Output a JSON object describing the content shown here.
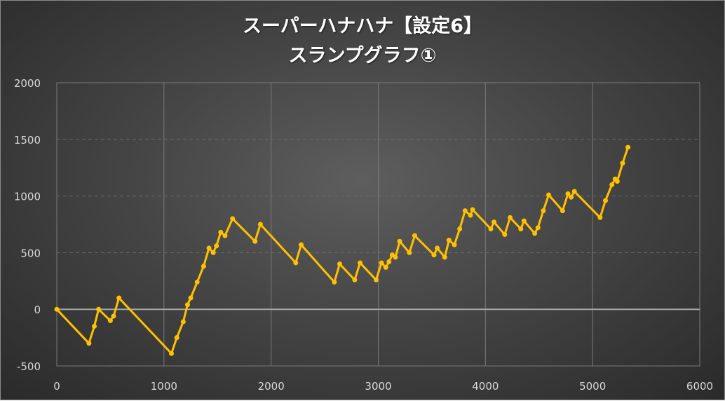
{
  "title_line_1": "スーパーハナハナ【設定6】",
  "title_line_2": "スランプグラフ①",
  "colors": {
    "line": "#FFC000",
    "grid_major": "#7a7a7a",
    "grid_minor": "#6a6a6a",
    "zero_line": "#a6a6a6",
    "text": "#d9d9d9"
  },
  "chart_data": {
    "type": "line",
    "xlim": [
      0,
      6000
    ],
    "ylim": [
      -500,
      2000
    ],
    "x_ticks": [
      "0",
      "1000",
      "2000",
      "3000",
      "4000",
      "5000",
      "6000"
    ],
    "y_ticks": [
      "2000",
      "1500",
      "1000",
      "500",
      "0",
      "-500"
    ],
    "grid": true,
    "legend": "none",
    "series": [
      {
        "points": [
          [
            0,
            0
          ],
          [
            300,
            -300
          ],
          [
            350,
            -150
          ],
          [
            390,
            0
          ],
          [
            500,
            -100
          ],
          [
            530,
            -60
          ],
          [
            580,
            100
          ],
          [
            1070,
            -390
          ],
          [
            1120,
            -250
          ],
          [
            1180,
            -110
          ],
          [
            1220,
            40
          ],
          [
            1250,
            100
          ],
          [
            1310,
            240
          ],
          [
            1370,
            380
          ],
          [
            1420,
            540
          ],
          [
            1460,
            500
          ],
          [
            1490,
            560
          ],
          [
            1530,
            680
          ],
          [
            1570,
            650
          ],
          [
            1640,
            800
          ],
          [
            1850,
            600
          ],
          [
            1900,
            750
          ],
          [
            2230,
            410
          ],
          [
            2280,
            570
          ],
          [
            2590,
            240
          ],
          [
            2640,
            400
          ],
          [
            2780,
            260
          ],
          [
            2830,
            410
          ],
          [
            2980,
            260
          ],
          [
            3030,
            410
          ],
          [
            3070,
            370
          ],
          [
            3100,
            420
          ],
          [
            3130,
            480
          ],
          [
            3160,
            460
          ],
          [
            3200,
            600
          ],
          [
            3290,
            500
          ],
          [
            3340,
            650
          ],
          [
            3520,
            480
          ],
          [
            3550,
            540
          ],
          [
            3620,
            460
          ],
          [
            3660,
            610
          ],
          [
            3710,
            570
          ],
          [
            3760,
            710
          ],
          [
            3810,
            870
          ],
          [
            3860,
            830
          ],
          [
            3880,
            880
          ],
          [
            4050,
            710
          ],
          [
            4080,
            770
          ],
          [
            4180,
            660
          ],
          [
            4230,
            810
          ],
          [
            4330,
            710
          ],
          [
            4360,
            780
          ],
          [
            4460,
            670
          ],
          [
            4490,
            720
          ],
          [
            4540,
            870
          ],
          [
            4590,
            1010
          ],
          [
            4720,
            870
          ],
          [
            4770,
            1020
          ],
          [
            4800,
            990
          ],
          [
            4830,
            1040
          ],
          [
            5070,
            810
          ],
          [
            5120,
            960
          ],
          [
            5180,
            1100
          ],
          [
            5210,
            1150
          ],
          [
            5230,
            1130
          ],
          [
            5280,
            1290
          ],
          [
            5330,
            1430
          ]
        ]
      }
    ]
  }
}
